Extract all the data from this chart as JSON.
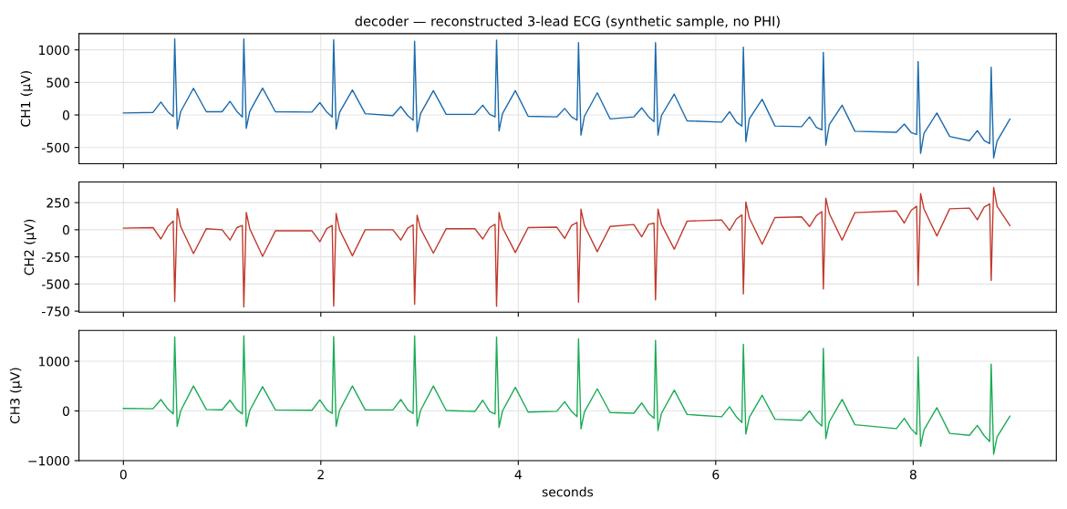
{
  "chart_data": [
    {
      "type": "line",
      "title": "decoder — reconstructed 3-lead ECG (synthetic sample, no PHI)",
      "ylabel": "CH1 (μV)",
      "x": [
        0,
        0.3,
        0.38,
        0.45,
        0.505,
        0.52,
        0.545,
        0.58,
        0.71,
        0.84,
        1.0,
        1.08,
        1.15,
        1.205,
        1.22,
        1.245,
        1.28,
        1.41,
        1.54,
        1.91,
        1.99,
        2.06,
        2.115,
        2.13,
        2.155,
        2.19,
        2.32,
        2.45,
        2.73,
        2.81,
        2.88,
        2.935,
        2.95,
        2.975,
        3.01,
        3.14,
        3.27,
        3.56,
        3.64,
        3.71,
        3.765,
        3.78,
        3.805,
        3.84,
        3.97,
        4.1,
        4.39,
        4.47,
        4.54,
        4.595,
        4.61,
        4.635,
        4.67,
        4.8,
        4.93,
        5.17,
        5.25,
        5.32,
        5.375,
        5.39,
        5.415,
        5.45,
        5.58,
        5.71,
        6.06,
        6.14,
        6.21,
        6.265,
        6.28,
        6.305,
        6.34,
        6.47,
        6.6,
        6.87,
        6.95,
        7.02,
        7.075,
        7.09,
        7.115,
        7.15,
        7.28,
        7.41,
        7.83,
        7.91,
        7.98,
        8.035,
        8.05,
        8.075,
        8.11,
        8.24,
        8.37,
        8.57,
        8.65,
        8.72,
        8.775,
        8.79,
        8.815,
        8.85,
        8.98
      ],
      "series": [
        {
          "color": "#1a6aac",
          "values": [
            30,
            40,
            198,
            50,
            -25,
            1168,
            -213,
            50,
            410,
            50,
            50,
            210,
            54,
            -30,
            1168,
            -205,
            55,
            413,
            50,
            45,
            190,
            45,
            -30,
            1155,
            -215,
            40,
            384,
            20,
            -10,
            130,
            -10,
            -80,
            1133,
            -255,
            20,
            374,
            10,
            10,
            150,
            10,
            -30,
            1150,
            -245,
            20,
            374,
            -20,
            -30,
            100,
            -30,
            -80,
            1110,
            -310,
            -20,
            340,
            -60,
            -30,
            110,
            -30,
            -100,
            1110,
            -310,
            -10,
            320,
            -90,
            -110,
            50,
            -110,
            -170,
            1040,
            -410,
            -60,
            240,
            -170,
            -180,
            -30,
            -190,
            -230,
            960,
            -465,
            -150,
            150,
            -250,
            -265,
            -140,
            -270,
            -300,
            822,
            -590,
            -280,
            30,
            -330,
            -395,
            -240,
            -395,
            -440,
            732,
            -660,
            -400,
            -63
          ]
        }
      ],
      "xlim": [
        -0.45,
        9.45
      ],
      "xticks": [
        0,
        2,
        4,
        6,
        8
      ],
      "ylim": [
        -750,
        1250
      ],
      "yticks": [
        -500,
        0,
        500,
        1000
      ],
      "grid": true,
      "tick_labels": "y",
      "marker": "none",
      "line_style": "solid"
    },
    {
      "type": "line",
      "ylabel": "CH2 (μV)",
      "x": [
        0,
        0.3,
        0.38,
        0.45,
        0.505,
        0.52,
        0.545,
        0.58,
        0.71,
        0.84,
        1.0,
        1.08,
        1.15,
        1.205,
        1.22,
        1.245,
        1.28,
        1.41,
        1.54,
        1.91,
        1.99,
        2.06,
        2.115,
        2.13,
        2.155,
        2.19,
        2.32,
        2.45,
        2.73,
        2.81,
        2.88,
        2.935,
        2.95,
        2.975,
        3.01,
        3.14,
        3.27,
        3.56,
        3.64,
        3.71,
        3.765,
        3.78,
        3.805,
        3.84,
        3.97,
        4.1,
        4.39,
        4.47,
        4.54,
        4.595,
        4.61,
        4.635,
        4.67,
        4.8,
        4.93,
        5.17,
        5.25,
        5.32,
        5.375,
        5.39,
        5.415,
        5.45,
        5.58,
        5.71,
        6.06,
        6.14,
        6.21,
        6.265,
        6.28,
        6.305,
        6.34,
        6.47,
        6.6,
        6.87,
        6.95,
        7.02,
        7.075,
        7.09,
        7.115,
        7.15,
        7.28,
        7.41,
        7.83,
        7.91,
        7.98,
        8.035,
        8.05,
        8.075,
        8.11,
        8.24,
        8.37,
        8.57,
        8.65,
        8.72,
        8.775,
        8.79,
        8.815,
        8.85,
        8.98
      ],
      "series": [
        {
          "color": "#c0392b",
          "values": [
            15,
            20,
            -85,
            30,
            80,
            -661,
            195,
            30,
            -220,
            10,
            0,
            -95,
            20,
            40,
            -712,
            160,
            10,
            -245,
            -10,
            -10,
            -110,
            10,
            40,
            -703,
            150,
            0,
            -240,
            0,
            0,
            -95,
            15,
            45,
            -686,
            135,
            10,
            -215,
            10,
            10,
            -85,
            20,
            50,
            -706,
            160,
            20,
            -210,
            20,
            24,
            -80,
            40,
            68,
            -667,
            190,
            40,
            -202,
            30,
            48,
            -65,
            50,
            60,
            -646,
            190,
            50,
            -179,
            80,
            90,
            -6,
            100,
            137,
            -592,
            256,
            110,
            -134,
            113,
            119,
            30,
            130,
            167,
            -545,
            292,
            150,
            -95,
            158,
            173,
            62,
            180,
            217,
            -512,
            333,
            190,
            -57,
            193,
            200,
            92,
            210,
            238,
            -467,
            390,
            217,
            39
          ]
        }
      ],
      "xlim": [
        -0.45,
        9.45
      ],
      "xticks": [
        0,
        2,
        4,
        6,
        8
      ],
      "ylim": [
        -760,
        440
      ],
      "yticks": [
        -750,
        -500,
        -250,
        0,
        250
      ],
      "grid": true,
      "tick_labels": "y",
      "marker": "none",
      "line_style": "solid"
    },
    {
      "type": "line",
      "ylabel": "CH3 (μV)",
      "xlabel": "seconds",
      "x": [
        0,
        0.3,
        0.38,
        0.45,
        0.505,
        0.52,
        0.545,
        0.58,
        0.71,
        0.84,
        1.0,
        1.08,
        1.15,
        1.205,
        1.22,
        1.245,
        1.28,
        1.41,
        1.54,
        1.91,
        1.99,
        2.06,
        2.115,
        2.13,
        2.155,
        2.19,
        2.32,
        2.45,
        2.73,
        2.81,
        2.88,
        2.935,
        2.95,
        2.975,
        3.01,
        3.14,
        3.27,
        3.56,
        3.64,
        3.71,
        3.765,
        3.78,
        3.805,
        3.84,
        3.97,
        4.1,
        4.39,
        4.47,
        4.54,
        4.595,
        4.61,
        4.635,
        4.67,
        4.8,
        4.93,
        5.17,
        5.25,
        5.32,
        5.375,
        5.39,
        5.415,
        5.45,
        5.58,
        5.71,
        6.06,
        6.14,
        6.21,
        6.265,
        6.28,
        6.305,
        6.34,
        6.47,
        6.6,
        6.87,
        6.95,
        7.02,
        7.075,
        7.09,
        7.115,
        7.15,
        7.28,
        7.41,
        7.83,
        7.91,
        7.98,
        8.035,
        8.05,
        8.075,
        8.11,
        8.24,
        8.37,
        8.57,
        8.65,
        8.72,
        8.775,
        8.79,
        8.815,
        8.85,
        8.98
      ],
      "series": [
        {
          "color": "#1aab55",
          "values": [
            50,
            43,
            230,
            40,
            -58,
            1490,
            -310,
            0,
            503,
            30,
            22,
            216,
            20,
            -58,
            1510,
            -310,
            10,
            490,
            20,
            14,
            223,
            20,
            -50,
            1495,
            -310,
            10,
            503,
            20,
            22,
            230,
            20,
            -50,
            1510,
            -302,
            10,
            503,
            10,
            -10,
            216,
            -10,
            -60,
            1490,
            -330,
            0,
            475,
            -22,
            -6,
            187,
            -10,
            -116,
            1451,
            -361,
            -20,
            445,
            -32,
            -45,
            161,
            -50,
            -148,
            1419,
            -394,
            -50,
            419,
            -71,
            -116,
            84,
            -120,
            -232,
            1342,
            -464,
            -130,
            316,
            -168,
            -187,
            0,
            -200,
            -303,
            1258,
            -555,
            -220,
            232,
            -277,
            -355,
            -148,
            -360,
            -471,
            1090,
            -710,
            -380,
            65,
            -452,
            -490,
            -290,
            -500,
            -613,
            942,
            -871,
            -520,
            -103
          ]
        }
      ],
      "xlim": [
        -0.45,
        9.45
      ],
      "xticks": [
        0,
        2,
        4,
        6,
        8
      ],
      "ylim": [
        -1000,
        1620
      ],
      "yticks": [
        {
          "value": -1000,
          "label": "−1000"
        },
        0,
        1000
      ],
      "grid": true,
      "marker": "none",
      "line_style": "solid"
    }
  ]
}
